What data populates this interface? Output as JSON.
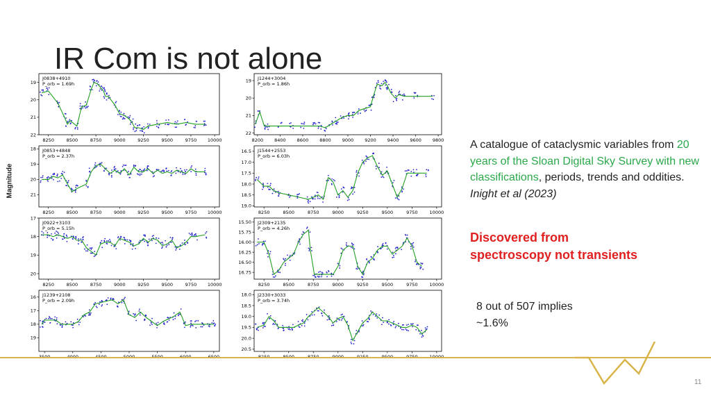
{
  "slide": {
    "title": "IR Com is not alone",
    "ylabel": "Magnitude",
    "text": {
      "line1": "A catalogue of cataclysmic variables from ",
      "highlight": "20 years of the Sloan Digital Sky Survey with new classifications",
      "line2": ", periods, trends and oddities.",
      "citation": "Inight et al (2023)"
    },
    "discovered": "Discovered from spectroscopy not transients",
    "fraction_line1": "8 out of 507 implies",
    "fraction_line2": "~1.6%",
    "page_number": "11"
  },
  "colors": {
    "accent_green": "#2aa84a",
    "red": "#e02020",
    "footer_gold": "#d9b44a",
    "points": "#2222cc",
    "fit": "#22a022"
  },
  "chart_data": [
    {
      "type": "scatter",
      "name": "J0838+4910",
      "period": "1.69h",
      "xticks": [
        "8250",
        "8500",
        "8750",
        "9000",
        "9250",
        "9500",
        "9750",
        "10000"
      ],
      "xlim": [
        8150,
        10050
      ],
      "yticks": [
        "19",
        "20",
        "21",
        "22"
      ],
      "ylim": [
        22,
        18.5
      ],
      "x": [
        8180,
        8250,
        8350,
        8420,
        8450,
        8480,
        8550,
        8600,
        8650,
        8700,
        8730,
        8770,
        8800,
        8830,
        8850,
        8880,
        8950,
        9000,
        9050,
        9100,
        9130,
        9160,
        9200,
        9250,
        9300,
        9400,
        9500,
        9600,
        9700,
        9800,
        9900
      ],
      "y": [
        19.6,
        19.5,
        20.2,
        21.0,
        21.4,
        21.2,
        21.5,
        20.4,
        20.3,
        19.4,
        19.0,
        19.1,
        19.3,
        19.5,
        19.8,
        19.8,
        20.3,
        20.8,
        20.9,
        21.1,
        21.3,
        21.6,
        21.6,
        21.7,
        21.5,
        21.4,
        21.3,
        21.4,
        21.3,
        21.4,
        21.4
      ]
    },
    {
      "type": "scatter",
      "name": "J1244+3004",
      "period": "1.86h",
      "xticks": [
        "8200",
        "8400",
        "8600",
        "8800",
        "9000",
        "9200",
        "9400",
        "9600",
        "9800"
      ],
      "xlim": [
        8170,
        9830
      ],
      "yticks": [
        "19",
        "20",
        "21",
        "22"
      ],
      "ylim": [
        22.1,
        18.6
      ],
      "x": [
        8180,
        8220,
        8260,
        8300,
        8400,
        8500,
        8600,
        8700,
        8750,
        8800,
        8850,
        8900,
        8950,
        9000,
        9050,
        9100,
        9150,
        9200,
        9230,
        9260,
        9300,
        9330,
        9350,
        9380,
        9420,
        9450,
        9500,
        9600,
        9750
      ],
      "y": [
        21.5,
        20.8,
        21.6,
        21.6,
        21.6,
        21.6,
        21.6,
        21.6,
        21.6,
        21.7,
        21.5,
        21.3,
        21.1,
        21.0,
        21.0,
        20.7,
        20.6,
        20.5,
        19.8,
        19.2,
        19.3,
        19.1,
        19.3,
        19.7,
        20.0,
        19.8,
        19.9,
        19.9,
        19.9
      ]
    },
    {
      "type": "scatter",
      "name": "J0853+4848",
      "period": "2.37h",
      "xticks": [
        "8250",
        "8500",
        "8750",
        "9000",
        "9250",
        "9500",
        "9750",
        "10000"
      ],
      "xlim": [
        8150,
        10050
      ],
      "yticks": [
        "18",
        "19",
        "20",
        "21"
      ],
      "ylim": [
        21.8,
        17.8
      ],
      "x": [
        8180,
        8250,
        8300,
        8350,
        8400,
        8450,
        8500,
        8550,
        8650,
        8700,
        8750,
        8800,
        8850,
        8900,
        8950,
        9000,
        9050,
        9100,
        9150,
        9200,
        9250,
        9300,
        9350,
        9400,
        9450,
        9500,
        9550,
        9600,
        9650,
        9700,
        9750,
        9800,
        9900
      ],
      "y": [
        20.0,
        20.0,
        19.8,
        19.9,
        19.7,
        20.3,
        20.8,
        20.6,
        20.3,
        19.5,
        19.1,
        19.0,
        19.3,
        19.6,
        19.4,
        19.6,
        19.3,
        19.7,
        19.2,
        19.5,
        19.5,
        19.3,
        19.6,
        19.4,
        19.6,
        19.5,
        19.6,
        19.4,
        19.5,
        19.6,
        19.3,
        19.5,
        19.5
      ]
    },
    {
      "type": "scatter",
      "name": "J1544+2553",
      "period": "6.03h",
      "xticks": [
        "8250",
        "8500",
        "8750",
        "9000",
        "9250",
        "9500",
        "9750",
        "10000"
      ],
      "xlim": [
        8150,
        10050
      ],
      "yticks": [
        "16.5",
        "17.0",
        "17.5",
        "18.0",
        "18.5",
        "19.0"
      ],
      "ylim": [
        19.05,
        16.25
      ],
      "x": [
        8180,
        8250,
        8300,
        8350,
        8400,
        8500,
        8600,
        8700,
        8750,
        8800,
        8850,
        8900,
        8950,
        9000,
        9050,
        9100,
        9150,
        9200,
        9250,
        9300,
        9350,
        9400,
        9450,
        9500,
        9550,
        9600,
        9650,
        9700,
        9750,
        9800,
        9900
      ],
      "y": [
        17.8,
        18.1,
        18.1,
        18.3,
        18.4,
        18.5,
        18.6,
        18.7,
        18.6,
        18.5,
        18.7,
        17.7,
        17.9,
        18.5,
        18.3,
        18.6,
        18.3,
        17.5,
        17.0,
        16.8,
        16.7,
        17.2,
        17.6,
        17.4,
        18.0,
        18.6,
        18.2,
        17.5,
        17.5,
        17.5,
        17.5
      ]
    },
    {
      "type": "scatter",
      "name": "J0922+3103",
      "period": "5.15h",
      "xticks": [
        "8250",
        "8500",
        "8750",
        "9000",
        "9250",
        "9500",
        "9750",
        "10000"
      ],
      "xlim": [
        8150,
        10050
      ],
      "yticks": [
        "17",
        "18",
        "19",
        "20"
      ],
      "ylim": [
        20.3,
        17.0
      ],
      "x": [
        8180,
        8250,
        8300,
        8350,
        8400,
        8450,
        8500,
        8550,
        8600,
        8650,
        8700,
        8750,
        8800,
        8850,
        8900,
        8950,
        9000,
        9050,
        9100,
        9150,
        9200,
        9250,
        9300,
        9350,
        9400,
        9450,
        9500,
        9550,
        9600,
        9650,
        9700,
        9750,
        9800,
        9900
      ],
      "y": [
        17.9,
        17.9,
        18.0,
        17.9,
        18.0,
        18.1,
        18.0,
        18.2,
        18.2,
        18.6,
        18.8,
        19.0,
        18.4,
        18.3,
        18.3,
        18.5,
        18.1,
        18.2,
        18.3,
        18.5,
        18.4,
        18.1,
        18.3,
        18.1,
        18.2,
        18.5,
        18.4,
        18.2,
        18.6,
        18.5,
        18.3,
        18.0,
        18.0,
        17.9
      ]
    },
    {
      "type": "scatter",
      "name": "J2309+2135",
      "period": "4.26h",
      "xticks": [
        "8250",
        "8500",
        "8750",
        "9000",
        "9250",
        "9500",
        "9750",
        "10000"
      ],
      "xlim": [
        8150,
        10050
      ],
      "yticks": [
        "15.50",
        "15.75",
        "16.00",
        "16.25",
        "16.50",
        "16.75"
      ],
      "ylim": [
        16.92,
        15.4
      ],
      "x": [
        8180,
        8250,
        8300,
        8350,
        8400,
        8450,
        8500,
        8550,
        8600,
        8650,
        8700,
        8720,
        8760,
        8800,
        8850,
        8900,
        8950,
        9000,
        9050,
        9100,
        9150,
        9200,
        9250,
        9300,
        9350,
        9400,
        9450,
        9500,
        9550,
        9600,
        9650,
        9700,
        9750,
        9800,
        9850
      ],
      "y": [
        16.0,
        16.0,
        16.3,
        16.8,
        16.7,
        16.5,
        16.4,
        16.3,
        16.0,
        15.8,
        15.7,
        16.2,
        16.8,
        16.8,
        16.8,
        16.8,
        16.8,
        16.6,
        16.2,
        16.1,
        16.1,
        16.6,
        16.8,
        16.5,
        16.4,
        16.2,
        16.1,
        16.1,
        16.3,
        16.2,
        16.1,
        15.9,
        16.1,
        16.5,
        16.6
      ]
    },
    {
      "type": "scatter",
      "name": "J1239+2108",
      "period": "2.09h",
      "xticks": [
        "3500",
        "4000",
        "4500",
        "5000",
        "5500",
        "6000",
        "6500"
      ],
      "xlim": [
        3400,
        6600
      ],
      "yticks": [
        "16",
        "17",
        "18",
        "19"
      ],
      "ylim": [
        20.0,
        15.5
      ],
      "x": [
        3450,
        3500,
        3600,
        3700,
        3800,
        3900,
        4000,
        4100,
        4200,
        4300,
        4400,
        4500,
        4600,
        4700,
        4800,
        4900,
        5000,
        5100,
        5200,
        5300,
        5400,
        5500,
        5600,
        5700,
        5800,
        5900,
        6000,
        6100,
        6200,
        6300,
        6400,
        6500
      ],
      "y": [
        18.0,
        17.7,
        17.7,
        17.7,
        18.0,
        18.0,
        18.0,
        17.8,
        17.3,
        17.1,
        16.5,
        16.4,
        16.3,
        16.2,
        16.5,
        16.2,
        17.3,
        17.5,
        17.1,
        17.5,
        17.8,
        18.1,
        17.8,
        17.6,
        17.4,
        17.1,
        18.1,
        18.0,
        18.0,
        18.0,
        18.0,
        18.0
      ]
    },
    {
      "type": "scatter",
      "name": "J2330+3033",
      "period": "3.74h",
      "xticks": [
        "8250",
        "8500",
        "8750",
        "9000",
        "9250",
        "9500",
        "9750",
        "10000"
      ],
      "xlim": [
        8150,
        10050
      ],
      "yticks": [
        "18.0",
        "18.5",
        "19.0",
        "19.5",
        "20.0",
        "20.5"
      ],
      "ylim": [
        20.6,
        17.8
      ],
      "x": [
        8180,
        8250,
        8300,
        8350,
        8400,
        8450,
        8500,
        8550,
        8600,
        8650,
        8700,
        8750,
        8800,
        8850,
        8900,
        8950,
        9000,
        9050,
        9100,
        9150,
        9200,
        9250,
        9300,
        9350,
        9400,
        9450,
        9500,
        9550,
        9600,
        9650,
        9700,
        9750,
        9800,
        9850,
        9900
      ],
      "y": [
        19.5,
        19.4,
        19.0,
        19.2,
        19.5,
        19.5,
        19.5,
        19.5,
        19.4,
        19.3,
        19.0,
        18.8,
        18.6,
        18.8,
        19.0,
        19.3,
        19.1,
        19.0,
        19.4,
        20.1,
        19.7,
        19.3,
        19.1,
        18.8,
        19.0,
        19.2,
        19.2,
        19.3,
        19.4,
        19.5,
        19.5,
        19.4,
        19.5,
        19.8,
        19.6
      ]
    }
  ]
}
